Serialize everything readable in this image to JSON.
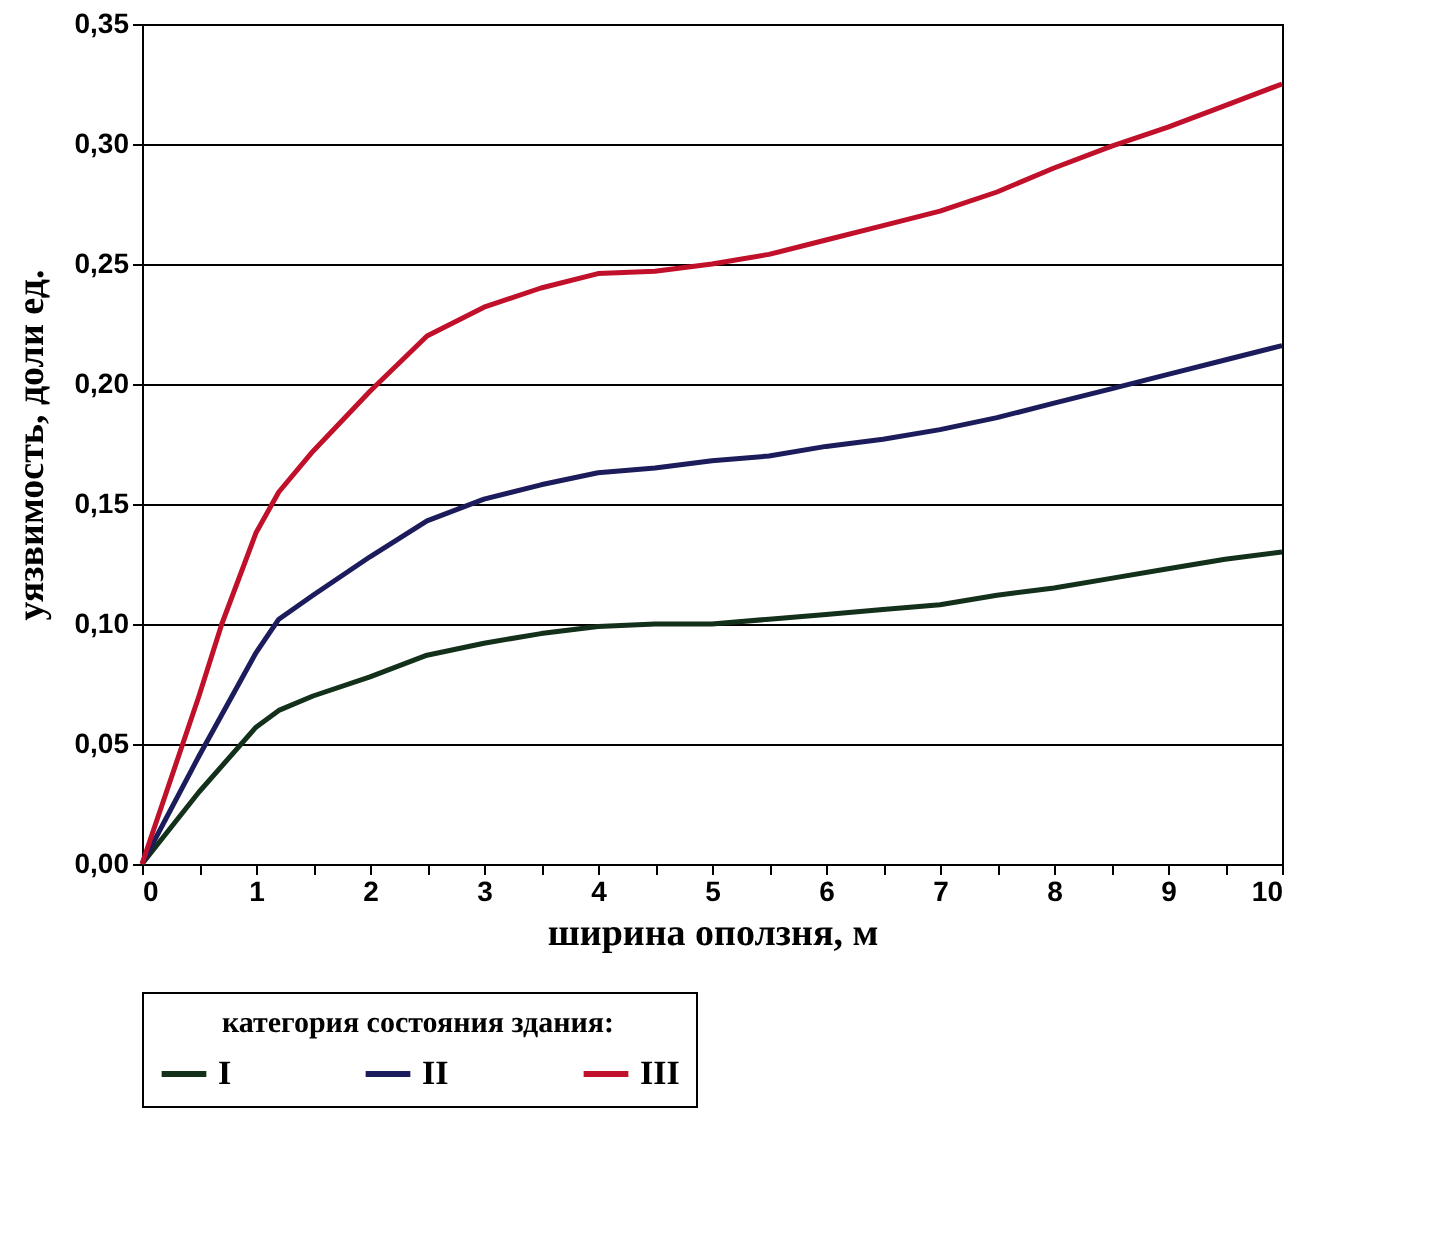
{
  "chart_data": {
    "type": "line",
    "xlabel": "ширина оползня, м",
    "ylabel": "уязвимость, доли ед.",
    "legend_title": "категория состояния здания:",
    "xlim": [
      0,
      10
    ],
    "xticks": [
      0,
      {
        "value": 0.5,
        "label": null
      },
      1,
      {
        "value": 1.5,
        "label": null
      },
      2,
      {
        "value": 2.5,
        "label": null
      },
      3,
      {
        "value": 3.5,
        "label": null
      },
      4,
      {
        "value": 4.5,
        "label": null
      },
      5,
      {
        "value": 5.5,
        "label": null
      },
      6,
      {
        "value": 6.5,
        "label": null
      },
      7,
      {
        "value": 7.5,
        "label": null
      },
      8,
      {
        "value": 8.5,
        "label": null
      },
      9,
      {
        "value": 9.5,
        "label": null
      },
      10
    ],
    "ylim": [
      0,
      0.35
    ],
    "yticks": [
      {
        "value": 0,
        "label": "0,00"
      },
      {
        "value": 0.05,
        "label": "0,05"
      },
      {
        "value": 0.1,
        "label": "0,10"
      },
      {
        "value": 0.15,
        "label": "0,15"
      },
      {
        "value": 0.2,
        "label": "0,20"
      },
      {
        "value": 0.25,
        "label": "0,25"
      },
      {
        "value": 0.3,
        "label": "0,30"
      },
      {
        "value": 0.35,
        "label": "0,35"
      }
    ],
    "grid": "y",
    "legend": "bottom",
    "marker": "none",
    "line_style": "solid",
    "series": [
      {
        "name": "I",
        "color": "#13301a",
        "x": [
          0,
          0.5,
          1,
          1.2,
          1.5,
          2,
          2.5,
          3,
          3.5,
          4,
          4.5,
          5,
          5.5,
          6,
          6.5,
          7,
          7.5,
          8,
          8.5,
          9,
          9.5,
          10
        ],
        "values": [
          0,
          0.03,
          0.057,
          0.064,
          0.07,
          0.078,
          0.087,
          0.092,
          0.096,
          0.099,
          0.1,
          0.1,
          0.102,
          0.104,
          0.106,
          0.108,
          0.112,
          0.115,
          0.119,
          0.123,
          0.127,
          0.13
        ]
      },
      {
        "name": "II",
        "color": "#1c1c5c",
        "x": [
          0,
          0.5,
          1,
          1.2,
          1.5,
          2,
          2.5,
          3,
          3.5,
          4,
          4.5,
          5,
          5.5,
          6,
          6.5,
          7,
          7.5,
          8,
          8.5,
          9,
          9.5,
          10
        ],
        "values": [
          0,
          0.045,
          0.088,
          0.102,
          0.112,
          0.128,
          0.143,
          0.152,
          0.158,
          0.163,
          0.165,
          0.168,
          0.17,
          0.174,
          0.177,
          0.181,
          0.186,
          0.192,
          0.198,
          0.204,
          0.21,
          0.216
        ]
      },
      {
        "name": "III",
        "color": "#c0102a",
        "x": [
          0,
          0.5,
          0.7,
          1,
          1.2,
          1.5,
          2,
          2.5,
          3,
          3.5,
          4,
          4.5,
          5,
          5.5,
          6,
          6.5,
          7,
          7.5,
          8,
          8.5,
          9,
          9.5,
          10
        ],
        "values": [
          0,
          0.07,
          0.1,
          0.138,
          0.155,
          0.172,
          0.197,
          0.22,
          0.232,
          0.24,
          0.246,
          0.247,
          0.25,
          0.254,
          0.26,
          0.266,
          0.272,
          0.28,
          0.29,
          0.299,
          0.307,
          0.316,
          0.325
        ]
      }
    ]
  }
}
